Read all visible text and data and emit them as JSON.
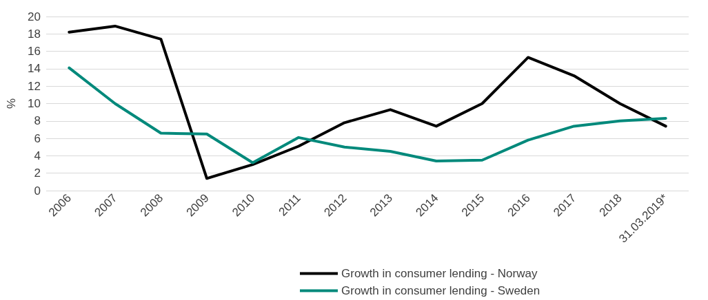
{
  "chart_data": {
    "type": "line",
    "ylabel": "%",
    "categories": [
      "2006",
      "2007",
      "2008",
      "2009",
      "2010",
      "2011",
      "2012",
      "2013",
      "2014",
      "2015",
      "2016",
      "2017",
      "2018",
      "31.03.2019*"
    ],
    "series": [
      {
        "name": "Growth in consumer lending - Norway",
        "color": "#000000",
        "values": [
          18.2,
          18.9,
          17.4,
          1.4,
          3.0,
          5.1,
          7.8,
          9.3,
          7.4,
          10.0,
          15.3,
          13.2,
          10.0,
          7.4
        ]
      },
      {
        "name": "Growth in consumer lending - Sweden",
        "color": "#00897b",
        "values": [
          14.1,
          10.0,
          6.6,
          6.5,
          3.2,
          6.1,
          5.0,
          4.5,
          3.4,
          3.5,
          5.8,
          7.4,
          8.0,
          8.3
        ]
      }
    ],
    "ylim": [
      0,
      20
    ],
    "yticks": [
      0,
      2,
      4,
      6,
      8,
      10,
      12,
      14,
      16,
      18,
      20
    ],
    "grid": "y",
    "legend": "bottom",
    "marker": "none",
    "line_style": "solid"
  }
}
